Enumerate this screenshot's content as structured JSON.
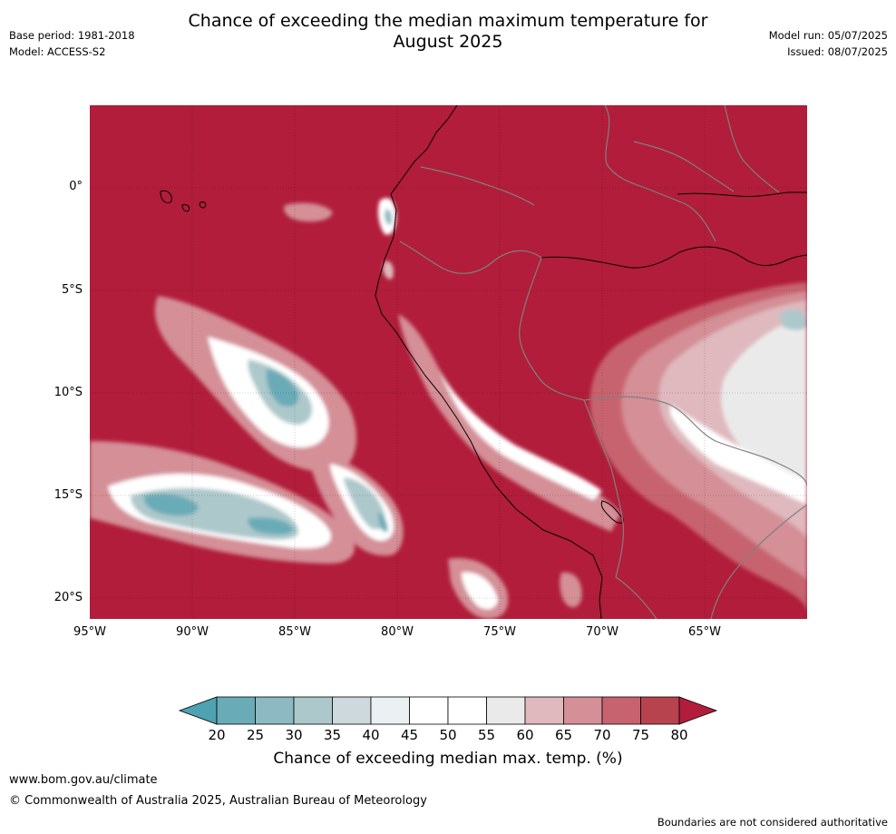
{
  "header": {
    "title_line1": "Chance of exceeding the median maximum temperature for",
    "title_line2": "August 2025",
    "base_period": "Base period: 1981-2018",
    "model": "Model: ACCESS-S2",
    "model_run": "Model run: 05/07/2025",
    "issued": "Issued: 08/07/2025"
  },
  "map": {
    "lat_ticks": [
      "0°",
      "5°S",
      "10°S",
      "15°S",
      "20°S"
    ],
    "lon_ticks": [
      "95°W",
      "90°W",
      "85°W",
      "80°W",
      "75°W",
      "70°W",
      "65°W"
    ],
    "background_color": "#b11d3a"
  },
  "colorbar": {
    "label": "Chance of exceeding median max. temp. (%)",
    "ticks": [
      "20",
      "25",
      "30",
      "35",
      "40",
      "45",
      "50",
      "55",
      "60",
      "65",
      "70",
      "75",
      "80"
    ],
    "colors": [
      "#4ea2b1",
      "#6aabb8",
      "#8db9c3",
      "#adc8cb",
      "#cdd9dc",
      "#ebf0f3",
      "#ffffff",
      "#ffffff",
      "#ebeaea",
      "#dfb9be",
      "#d48f97",
      "#c7636e",
      "#b7434f",
      "#b11d3a"
    ]
  },
  "footer": {
    "url": "www.bom.gov.au/climate",
    "copyright": "© Commonwealth of Australia 2025, Australian Bureau of Meteorology",
    "disclaimer": "Boundaries are not considered authoritative"
  }
}
